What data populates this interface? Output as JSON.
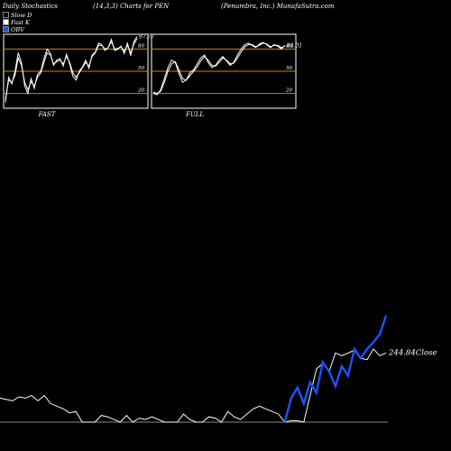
{
  "header": {
    "left": "Daily Stochastics",
    "center": "(14,3,3) Charts for PEN",
    "right": "(Penumbra, Inc.) MunafaSutra.com"
  },
  "legend": [
    {
      "label": "Slow D",
      "color": "#000000"
    },
    {
      "label": "Fast K",
      "color": "#ffffff"
    },
    {
      "label": "OBV",
      "color": "#1a55ff"
    }
  ],
  "colors": {
    "background": "#000000",
    "line": "#ffffff",
    "obv": "#1a55ff",
    "level": "#c8860d"
  },
  "chart_data": [
    {
      "type": "line",
      "title": "FAST",
      "ylim": [
        0,
        100
      ],
      "levels": [
        20,
        50,
        80
      ],
      "level_labels": [
        "20",
        "50",
        "80"
      ],
      "last_value_label": "97.77",
      "series": [
        {
          "values": [
            8,
            42,
            33,
            50,
            75,
            62,
            30,
            20,
            40,
            27,
            46,
            50,
            67,
            80,
            74,
            58,
            65,
            67,
            57,
            73,
            60,
            43,
            38,
            50,
            56,
            65,
            54,
            72,
            76,
            88,
            86,
            78,
            82,
            93,
            78,
            80,
            84,
            74,
            88,
            71,
            90,
            97
          ]
        },
        {
          "values": [
            12,
            38,
            35,
            45,
            68,
            58,
            35,
            25,
            36,
            30,
            42,
            48,
            62,
            75,
            72,
            60,
            63,
            65,
            60,
            70,
            62,
            48,
            42,
            48,
            55,
            62,
            57,
            70,
            75,
            85,
            85,
            80,
            82,
            90,
            80,
            81,
            83,
            77,
            85,
            75,
            87,
            94
          ]
        }
      ]
    },
    {
      "type": "line",
      "title": "FULL",
      "ylim": [
        0,
        100
      ],
      "levels": [
        20,
        50,
        80
      ],
      "level_labels": [
        "20",
        "50",
        "80"
      ],
      "last_value_label": "84.01",
      "series": [
        {
          "values": [
            20,
            18,
            25,
            40,
            55,
            65,
            62,
            47,
            35,
            38,
            48,
            52,
            60,
            68,
            72,
            62,
            55,
            58,
            65,
            70,
            64,
            58,
            62,
            72,
            80,
            86,
            88,
            85,
            82,
            87,
            89,
            86,
            82,
            86,
            84,
            80,
            85
          ]
        },
        {
          "values": [
            22,
            20,
            23,
            35,
            50,
            60,
            63,
            52,
            40,
            38,
            44,
            50,
            56,
            64,
            70,
            65,
            58,
            57,
            62,
            68,
            65,
            60,
            61,
            68,
            76,
            83,
            86,
            86,
            83,
            85,
            88,
            87,
            83,
            85,
            85,
            82,
            84
          ]
        }
      ]
    },
    {
      "type": "line",
      "title": "",
      "last_value_label": "244.84",
      "last_value_suffix": "Close",
      "series": [
        {
          "name": "Close",
          "values": [
            28,
            27,
            26,
            29,
            28,
            30,
            26,
            30,
            24,
            22,
            20,
            17,
            18,
            10,
            10,
            10,
            15,
            14,
            12,
            10,
            15,
            10,
            13,
            12,
            14,
            12,
            10,
            10,
            10,
            16,
            12,
            10,
            10,
            14,
            13,
            10,
            18,
            14,
            12,
            16,
            20,
            22,
            20,
            18,
            16,
            10,
            11,
            11,
            10,
            30,
            50,
            54,
            48,
            62,
            60,
            62,
            64,
            58,
            57,
            65,
            60,
            62
          ]
        },
        {
          "name": "OBV",
          "values": [
            null,
            null,
            null,
            null,
            null,
            null,
            null,
            null,
            null,
            null,
            null,
            null,
            null,
            null,
            null,
            null,
            null,
            null,
            null,
            null,
            null,
            null,
            null,
            null,
            null,
            null,
            null,
            null,
            null,
            null,
            null,
            null,
            null,
            null,
            null,
            null,
            null,
            null,
            null,
            null,
            null,
            null,
            null,
            null,
            null,
            10,
            28,
            36,
            24,
            40,
            32,
            55,
            48,
            37,
            52,
            45,
            65,
            58,
            65,
            70,
            76,
            90
          ]
        }
      ]
    }
  ]
}
